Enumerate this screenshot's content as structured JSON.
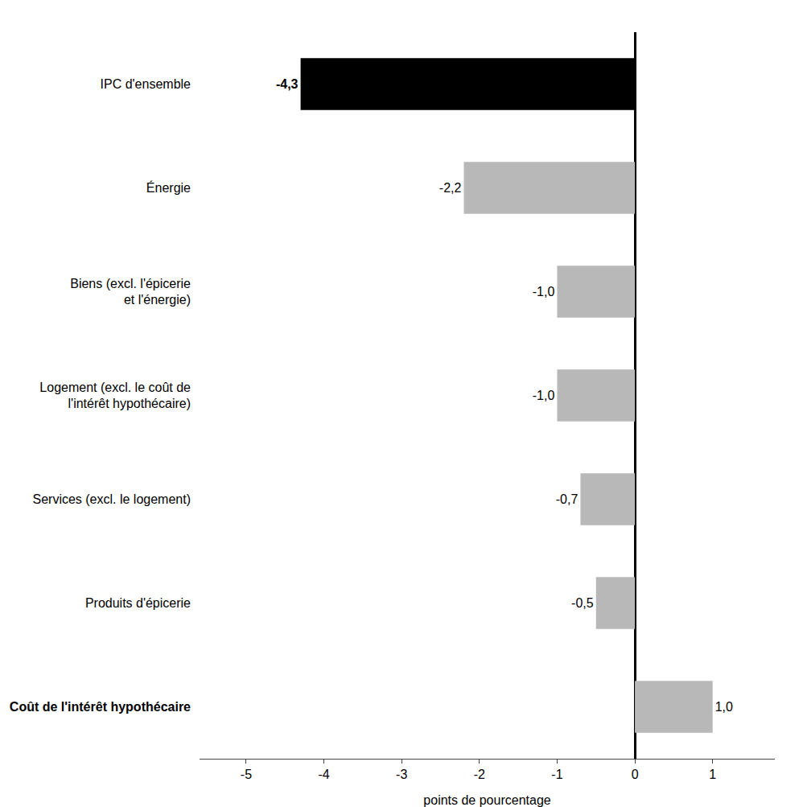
{
  "chart_data": {
    "type": "bar",
    "orientation": "horizontal",
    "categories": [
      "Coût de l'intérêt hypothécaire",
      "Produits d'épicerie",
      "Services (excl. le logement)",
      "Logement (excl. le coût de\nl'intérêt hypothécaire)",
      "Biens (excl. l'épicerie\net l'énergie)",
      "Énergie",
      "IPC d'ensemble"
    ],
    "values": [
      1.0,
      -0.5,
      -0.7,
      -1.0,
      -1.0,
      -2.2,
      -4.3
    ],
    "value_labels": [
      "1,0",
      "-0,5",
      "-0,7",
      "-1,0",
      "-1,0",
      "-2,2",
      "-4,3"
    ],
    "data_labels": true,
    "colors": [
      "#b8b8b8",
      "#b8b8b8",
      "#b8b8b8",
      "#b8b8b8",
      "#b8b8b8",
      "#b8b8b8",
      "#000000"
    ],
    "xlabel": "points de pourcentage",
    "xlim": [
      -5.6,
      1.8
    ],
    "xticks": [
      -5,
      -4,
      -3,
      -2,
      -1,
      0,
      1
    ],
    "grid": false
  }
}
